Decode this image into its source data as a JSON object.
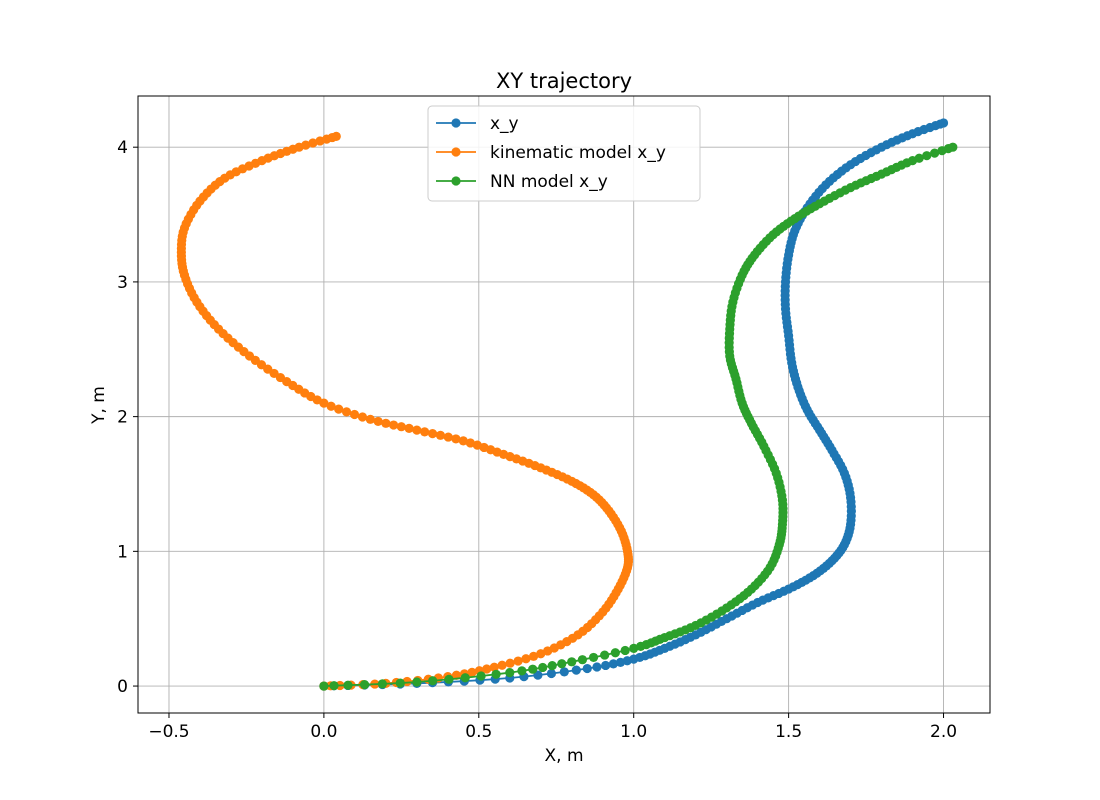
{
  "chart_data": {
    "type": "line",
    "title": "XY trajectory",
    "xlabel": "X, m",
    "ylabel": "Y, m",
    "xlim": [
      -0.6,
      2.15
    ],
    "ylim": [
      -0.2,
      4.38
    ],
    "xticks": [
      -0.5,
      0.0,
      0.5,
      1.0,
      1.5,
      2.0
    ],
    "xtick_labels": [
      "−0.5",
      "0.0",
      "0.5",
      "1.0",
      "1.5",
      "2.0"
    ],
    "yticks": [
      0,
      1,
      2,
      3,
      4
    ],
    "ytick_labels": [
      "0",
      "1",
      "2",
      "3",
      "4"
    ],
    "grid": true,
    "legend_position": "upper center",
    "markers": true,
    "series": [
      {
        "name": "x_y",
        "color": "#1f77b4",
        "x": [
          0.0,
          0.3,
          0.6,
          0.85,
          1.0,
          1.1,
          1.2,
          1.3,
          1.4,
          1.5,
          1.58,
          1.64,
          1.68,
          1.7,
          1.7,
          1.68,
          1.64,
          1.6,
          1.56,
          1.53,
          1.51,
          1.5,
          1.49,
          1.49,
          1.5,
          1.52,
          1.56,
          1.62,
          1.7,
          1.8,
          1.9,
          2.0
        ],
        "y": [
          0.0,
          0.02,
          0.06,
          0.13,
          0.2,
          0.28,
          0.38,
          0.5,
          0.62,
          0.72,
          0.82,
          0.93,
          1.05,
          1.2,
          1.4,
          1.58,
          1.75,
          1.9,
          2.05,
          2.22,
          2.4,
          2.6,
          2.8,
          3.0,
          3.2,
          3.38,
          3.55,
          3.72,
          3.87,
          4.0,
          4.1,
          4.18
        ]
      },
      {
        "name": "kinematic model x_y",
        "color": "#ff7f0e",
        "x": [
          0.0,
          0.2,
          0.4,
          0.55,
          0.7,
          0.82,
          0.9,
          0.95,
          0.98,
          0.98,
          0.96,
          0.92,
          0.87,
          0.8,
          0.7,
          0.58,
          0.45,
          0.3,
          0.15,
          0.0,
          -0.12,
          -0.24,
          -0.34,
          -0.41,
          -0.45,
          -0.46,
          -0.45,
          -0.4,
          -0.32,
          -0.2,
          -0.08,
          0.04
        ],
        "y": [
          0.0,
          0.02,
          0.07,
          0.14,
          0.24,
          0.38,
          0.55,
          0.72,
          0.88,
          1.0,
          1.15,
          1.3,
          1.42,
          1.52,
          1.62,
          1.72,
          1.82,
          1.9,
          1.98,
          2.1,
          2.26,
          2.45,
          2.65,
          2.85,
          3.05,
          3.22,
          3.4,
          3.6,
          3.77,
          3.9,
          4.0,
          4.08
        ]
      },
      {
        "name": "NN model x_y",
        "color": "#2ca02c",
        "x": [
          0.0,
          0.3,
          0.6,
          0.8,
          1.0,
          1.1,
          1.2,
          1.3,
          1.38,
          1.44,
          1.47,
          1.48,
          1.48,
          1.46,
          1.42,
          1.38,
          1.35,
          1.33,
          1.31,
          1.31,
          1.32,
          1.35,
          1.39,
          1.45,
          1.52,
          1.6,
          1.7,
          1.8,
          1.9,
          2.03
        ],
        "y": [
          0.0,
          0.03,
          0.1,
          0.18,
          0.28,
          0.36,
          0.45,
          0.58,
          0.72,
          0.88,
          1.05,
          1.2,
          1.38,
          1.58,
          1.78,
          1.95,
          2.1,
          2.28,
          2.45,
          2.65,
          2.85,
          3.05,
          3.2,
          3.35,
          3.47,
          3.58,
          3.7,
          3.8,
          3.9,
          4.0
        ]
      }
    ]
  }
}
